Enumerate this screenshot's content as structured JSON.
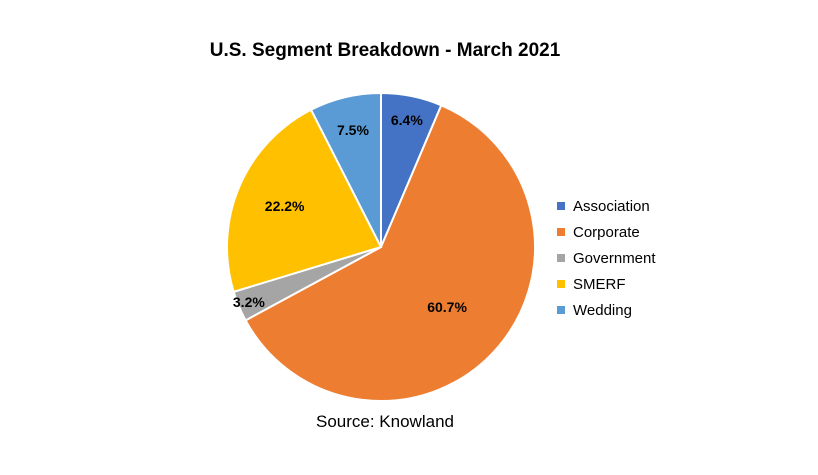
{
  "chart_data": {
    "type": "pie",
    "title": "U.S. Segment Breakdown - March 2021",
    "source": "Source: Knowland",
    "categories": [
      "Association",
      "Corporate",
      "Government",
      "SMERF",
      "Wedding"
    ],
    "values": [
      6.4,
      60.7,
      3.2,
      22.2,
      7.5
    ],
    "value_labels": [
      "6.4%",
      "60.7%",
      "3.2%",
      "22.2%",
      "7.5%"
    ],
    "colors": [
      "#4472C4",
      "#ED7D31",
      "#A5A5A5",
      "#FFC000",
      "#5B9BD5"
    ],
    "legend_position": "right"
  }
}
